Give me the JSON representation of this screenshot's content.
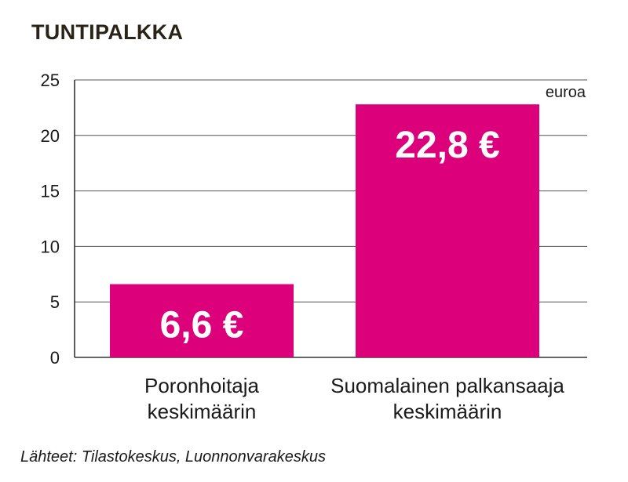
{
  "chart_data": {
    "type": "bar",
    "title": "TUNTIPALKKA",
    "unit_label": "euroa",
    "categories": [
      [
        "Poronhoitaja",
        "keskimäärin"
      ],
      [
        "Suomalainen palkansaaja",
        "keskimäärin"
      ]
    ],
    "values": [
      6.6,
      22.8
    ],
    "data_labels": [
      "6,6 €",
      "22,8 €"
    ],
    "yticks": [
      0,
      5,
      10,
      15,
      20,
      25
    ],
    "ylim": [
      0,
      25
    ],
    "grid": true,
    "bar_color": "#dc007a",
    "source": "Lähteet: Tilastokeskus, Luonnonvarakeskus"
  }
}
